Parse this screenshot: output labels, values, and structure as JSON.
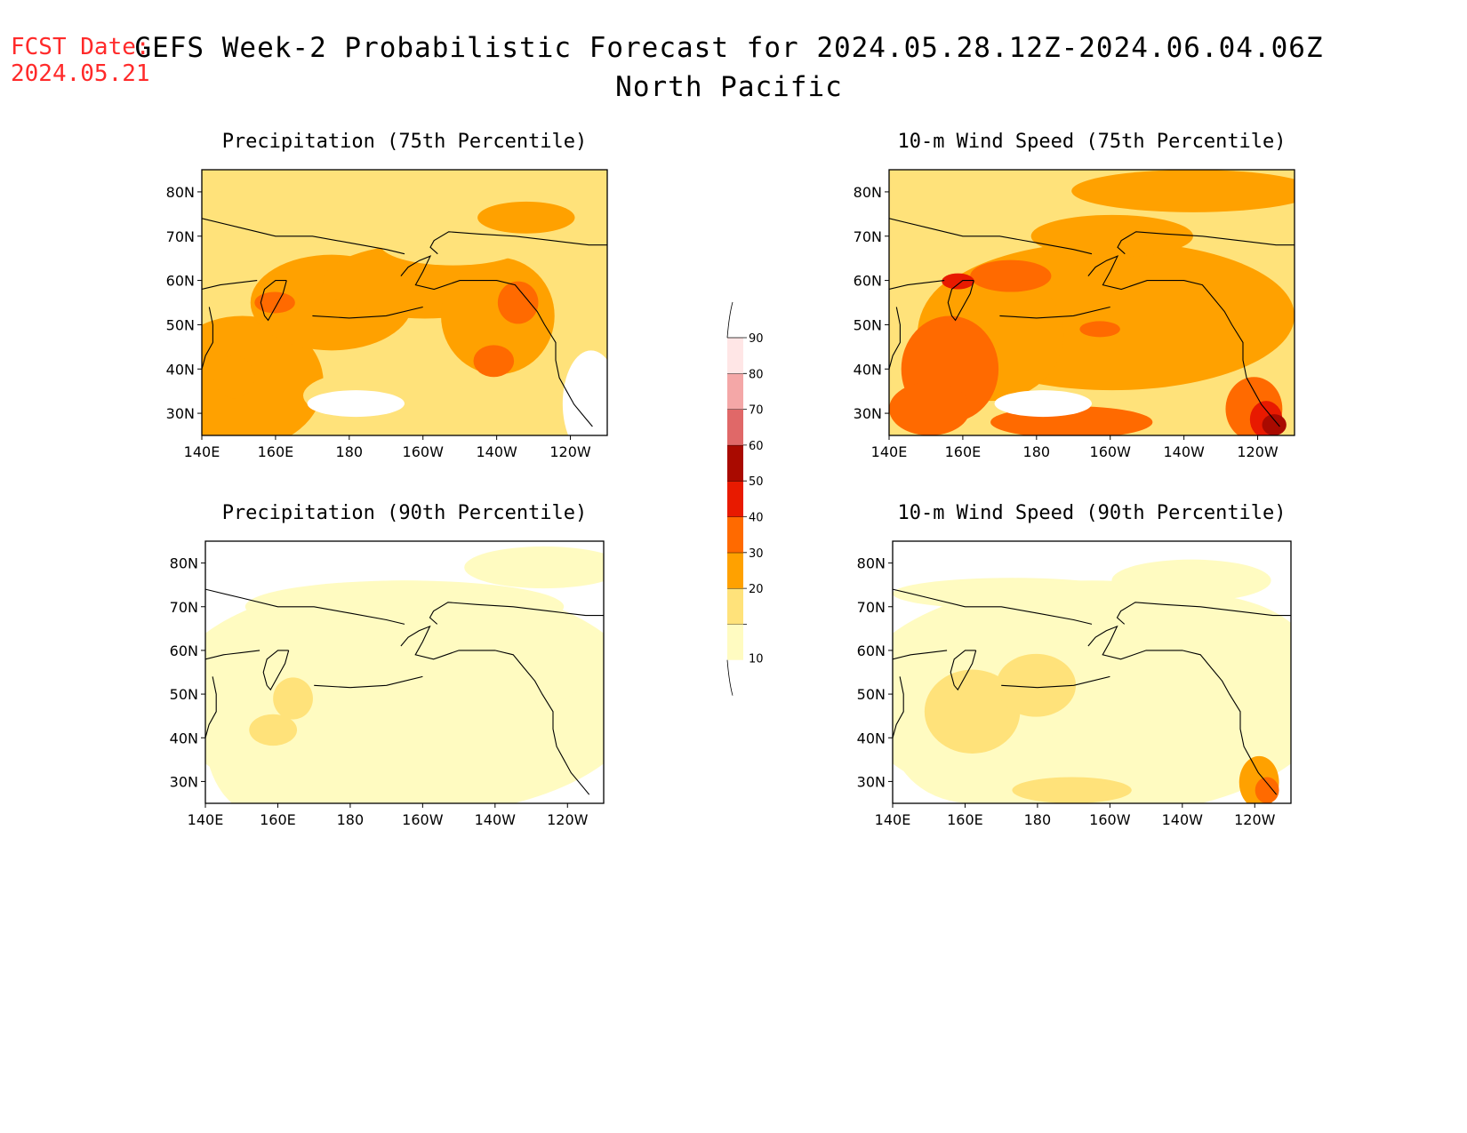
{
  "header": {
    "fcst_label": "FCST Date:",
    "fcst_date": "2024.05.21",
    "title_line1": "GEFS Week-2 Probabilistic Forecast for 2024.05.28.12Z-2024.06.04.06Z",
    "title_line2": "North Pacific"
  },
  "map": {
    "lon_ticks": [
      "140E",
      "160E",
      "180",
      "160W",
      "140W",
      "120W"
    ],
    "lon_values": [
      140,
      160,
      180,
      200,
      220,
      240
    ],
    "lat_ticks": [
      "30N",
      "40N",
      "50N",
      "60N",
      "70N",
      "80N"
    ],
    "lat_values": [
      30,
      40,
      50,
      60,
      70,
      80
    ],
    "lon_range": [
      140,
      250
    ],
    "lat_range": [
      25,
      85
    ]
  },
  "panels": [
    {
      "title": "Precipitation (75th Percentile)",
      "id": "precip-75"
    },
    {
      "title": "10-m Wind Speed (75th Percentile)",
      "id": "wind-75"
    },
    {
      "title": "Precipitation (90th Percentile)",
      "id": "precip-90"
    },
    {
      "title": "10-m Wind Speed (90th Percentile)",
      "id": "wind-90"
    }
  ],
  "colorbar": {
    "labels": [
      "10",
      "20",
      "30",
      "40",
      "50",
      "60",
      "70",
      "80",
      "90"
    ],
    "colors": [
      "#fffbc1",
      "#ffe27a",
      "#ffa100",
      "#ff6a00",
      "#e81a00",
      "#a90a00",
      "#e06868",
      "#f4a7a7",
      "#ffe6e6"
    ]
  }
}
